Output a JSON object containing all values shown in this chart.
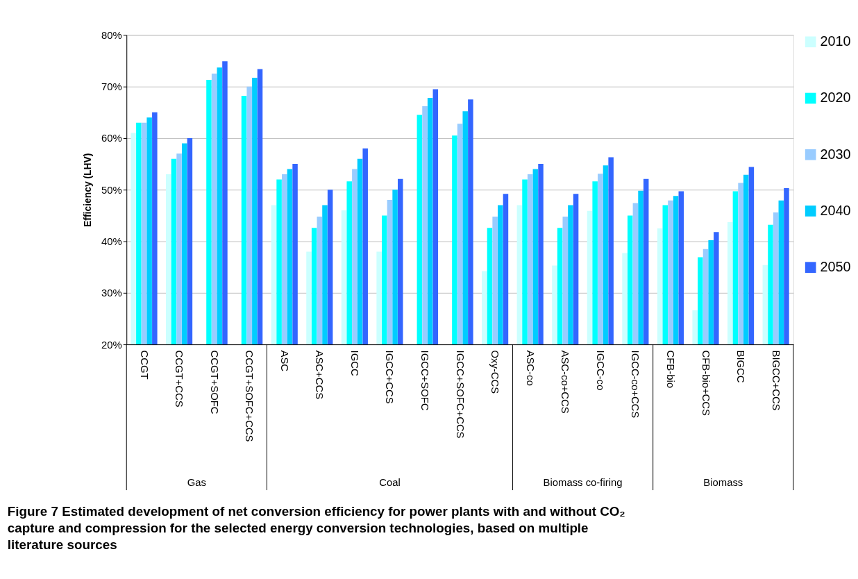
{
  "chart_data": {
    "type": "bar",
    "title": "Figure 7 Estimated development of net conversion efficiency for power plants with and without CO₂ capture and compression for the selected energy conversion technologies, based on multiple literature sources",
    "ylabel": "Efficiency (LHV)",
    "categories": [
      "CCGT",
      "CCGT+CCS",
      "CCGT+SOFC",
      "CCGT+SOFC+CCS",
      "ASC",
      "ASC+CCS",
      "IGCC",
      "IGCC+CCS",
      "IGCC+SOFC",
      "IGCC+SOFC+CCS",
      "Oxy-CCS",
      "ASC-co",
      "ASC-co+CCS",
      "IGCC-co",
      "IGCC-co+CCS",
      "CFB-bio",
      "CFB-bio+CCS",
      "BIGCC",
      "BIGCC+CCS"
    ],
    "annotations": [
      "Gas",
      "Coal",
      "Biomass co-firing",
      "Biomass"
    ],
    "series": [
      {
        "name": "2010",
        "color": "#ccffff",
        "values": [
          61,
          53,
          null,
          null,
          47,
          38,
          46,
          38,
          null,
          null,
          34.2,
          47,
          35.3,
          45.9,
          37.7,
          42.5,
          26.6,
          43.7,
          35.4
        ]
      },
      {
        "name": "2020",
        "color": "#00ffff",
        "values": [
          63,
          56,
          71.3,
          68.2,
          52,
          42.6,
          51.6,
          45,
          64.5,
          60.5,
          42.6,
          52,
          42.6,
          51.6,
          45,
          47,
          36.9,
          49.7,
          43.2
        ]
      },
      {
        "name": "2030",
        "color": "#99ccff",
        "values": [
          63,
          57,
          72.5,
          70,
          53,
          44.8,
          54,
          48,
          66.2,
          62.8,
          44.8,
          53,
          44.8,
          53.1,
          47.4,
          47.9,
          38.5,
          51.3,
          45.6
        ]
      },
      {
        "name": "2040",
        "color": "#00ccff",
        "values": [
          64,
          59,
          73.7,
          71.7,
          54,
          47,
          56,
          50,
          67.8,
          65.2,
          47,
          54,
          47,
          54.7,
          49.8,
          48.8,
          40.2,
          52.9,
          47.9
        ]
      },
      {
        "name": "2050",
        "color": "#3366ff",
        "values": [
          65,
          60,
          74.9,
          73.4,
          55,
          50,
          58,
          52.1,
          69.5,
          67.5,
          49.2,
          55,
          49.2,
          56.3,
          52.1,
          49.7,
          41.8,
          54.4,
          50.3
        ]
      }
    ],
    "ylim": [
      20,
      80
    ],
    "yticks": [
      {
        "value": 20,
        "label": "20%"
      },
      {
        "value": 30,
        "label": "30%"
      },
      {
        "value": 40,
        "label": "40%"
      },
      {
        "value": 50,
        "label": "50%"
      },
      {
        "value": 60,
        "label": "60%"
      },
      {
        "value": 70,
        "label": "70%"
      },
      {
        "value": 80,
        "label": "80%"
      }
    ],
    "grid": "y",
    "legend": "right"
  }
}
